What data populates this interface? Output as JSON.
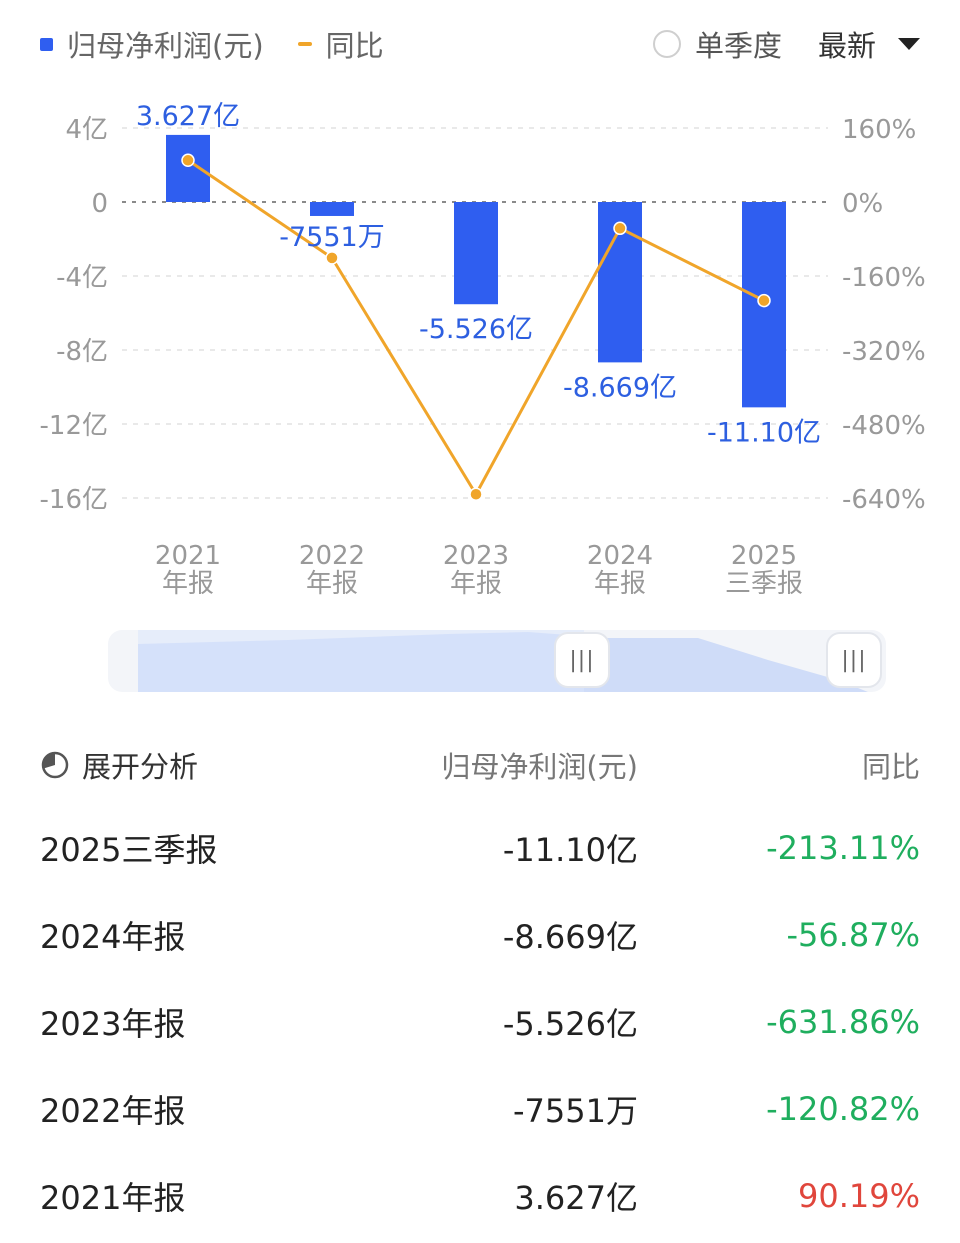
{
  "legend": {
    "series1": "归母净利润(元)",
    "series2": "同比"
  },
  "controls": {
    "single_quarter": "单季度",
    "latest": "最新"
  },
  "colors": {
    "bar": "#2f5ef0",
    "line": "#f0a52a",
    "negative": "#1fae5e",
    "positive": "#e0463c"
  },
  "chart_data": {
    "type": "bar",
    "categories": [
      [
        "2021",
        "年报"
      ],
      [
        "2022",
        "年报"
      ],
      [
        "2023",
        "年报"
      ],
      [
        "2024",
        "年报"
      ],
      [
        "2025",
        "三季报"
      ]
    ],
    "series": [
      {
        "name": "归母净利润(元)",
        "type": "bar",
        "values_yi": [
          3.627,
          -0.7551,
          -5.526,
          -8.669,
          -11.1
        ],
        "labels": [
          "3.627亿",
          "-7551万",
          "-5.526亿",
          "-8.669亿",
          "-11.10亿"
        ]
      },
      {
        "name": "同比",
        "type": "line",
        "values_pct": [
          90.19,
          -120.82,
          -631.86,
          -56.87,
          -213.11
        ]
      }
    ],
    "y_left": {
      "ticks": [
        4,
        0,
        -4,
        -8,
        -12,
        -16
      ],
      "tick_labels": [
        "4亿",
        "0",
        "-4亿",
        "-8亿",
        "-12亿",
        "-16亿"
      ],
      "range": [
        -16,
        4
      ]
    },
    "y_right": {
      "ticks": [
        160,
        0,
        -160,
        -320,
        -480,
        -640
      ],
      "tick_labels": [
        "160%",
        "0%",
        "-160%",
        "-320%",
        "-480%",
        "-640%"
      ],
      "range": [
        -640,
        160
      ]
    },
    "grid": true
  },
  "table": {
    "header": {
      "expand": "展开分析",
      "col2": "归母净利润(元)",
      "col3": "同比"
    },
    "rows": [
      {
        "period": "2025三季报",
        "profit": "-11.10亿",
        "yoy": "-213.11%",
        "sign": "neg"
      },
      {
        "period": "2024年报",
        "profit": "-8.669亿",
        "yoy": "-56.87%",
        "sign": "neg"
      },
      {
        "period": "2023年报",
        "profit": "-5.526亿",
        "yoy": "-631.86%",
        "sign": "neg"
      },
      {
        "period": "2022年报",
        "profit": "-7551万",
        "yoy": "-120.82%",
        "sign": "neg"
      },
      {
        "period": "2021年报",
        "profit": "3.627亿",
        "yoy": "90.19%",
        "sign": "pos"
      }
    ]
  }
}
